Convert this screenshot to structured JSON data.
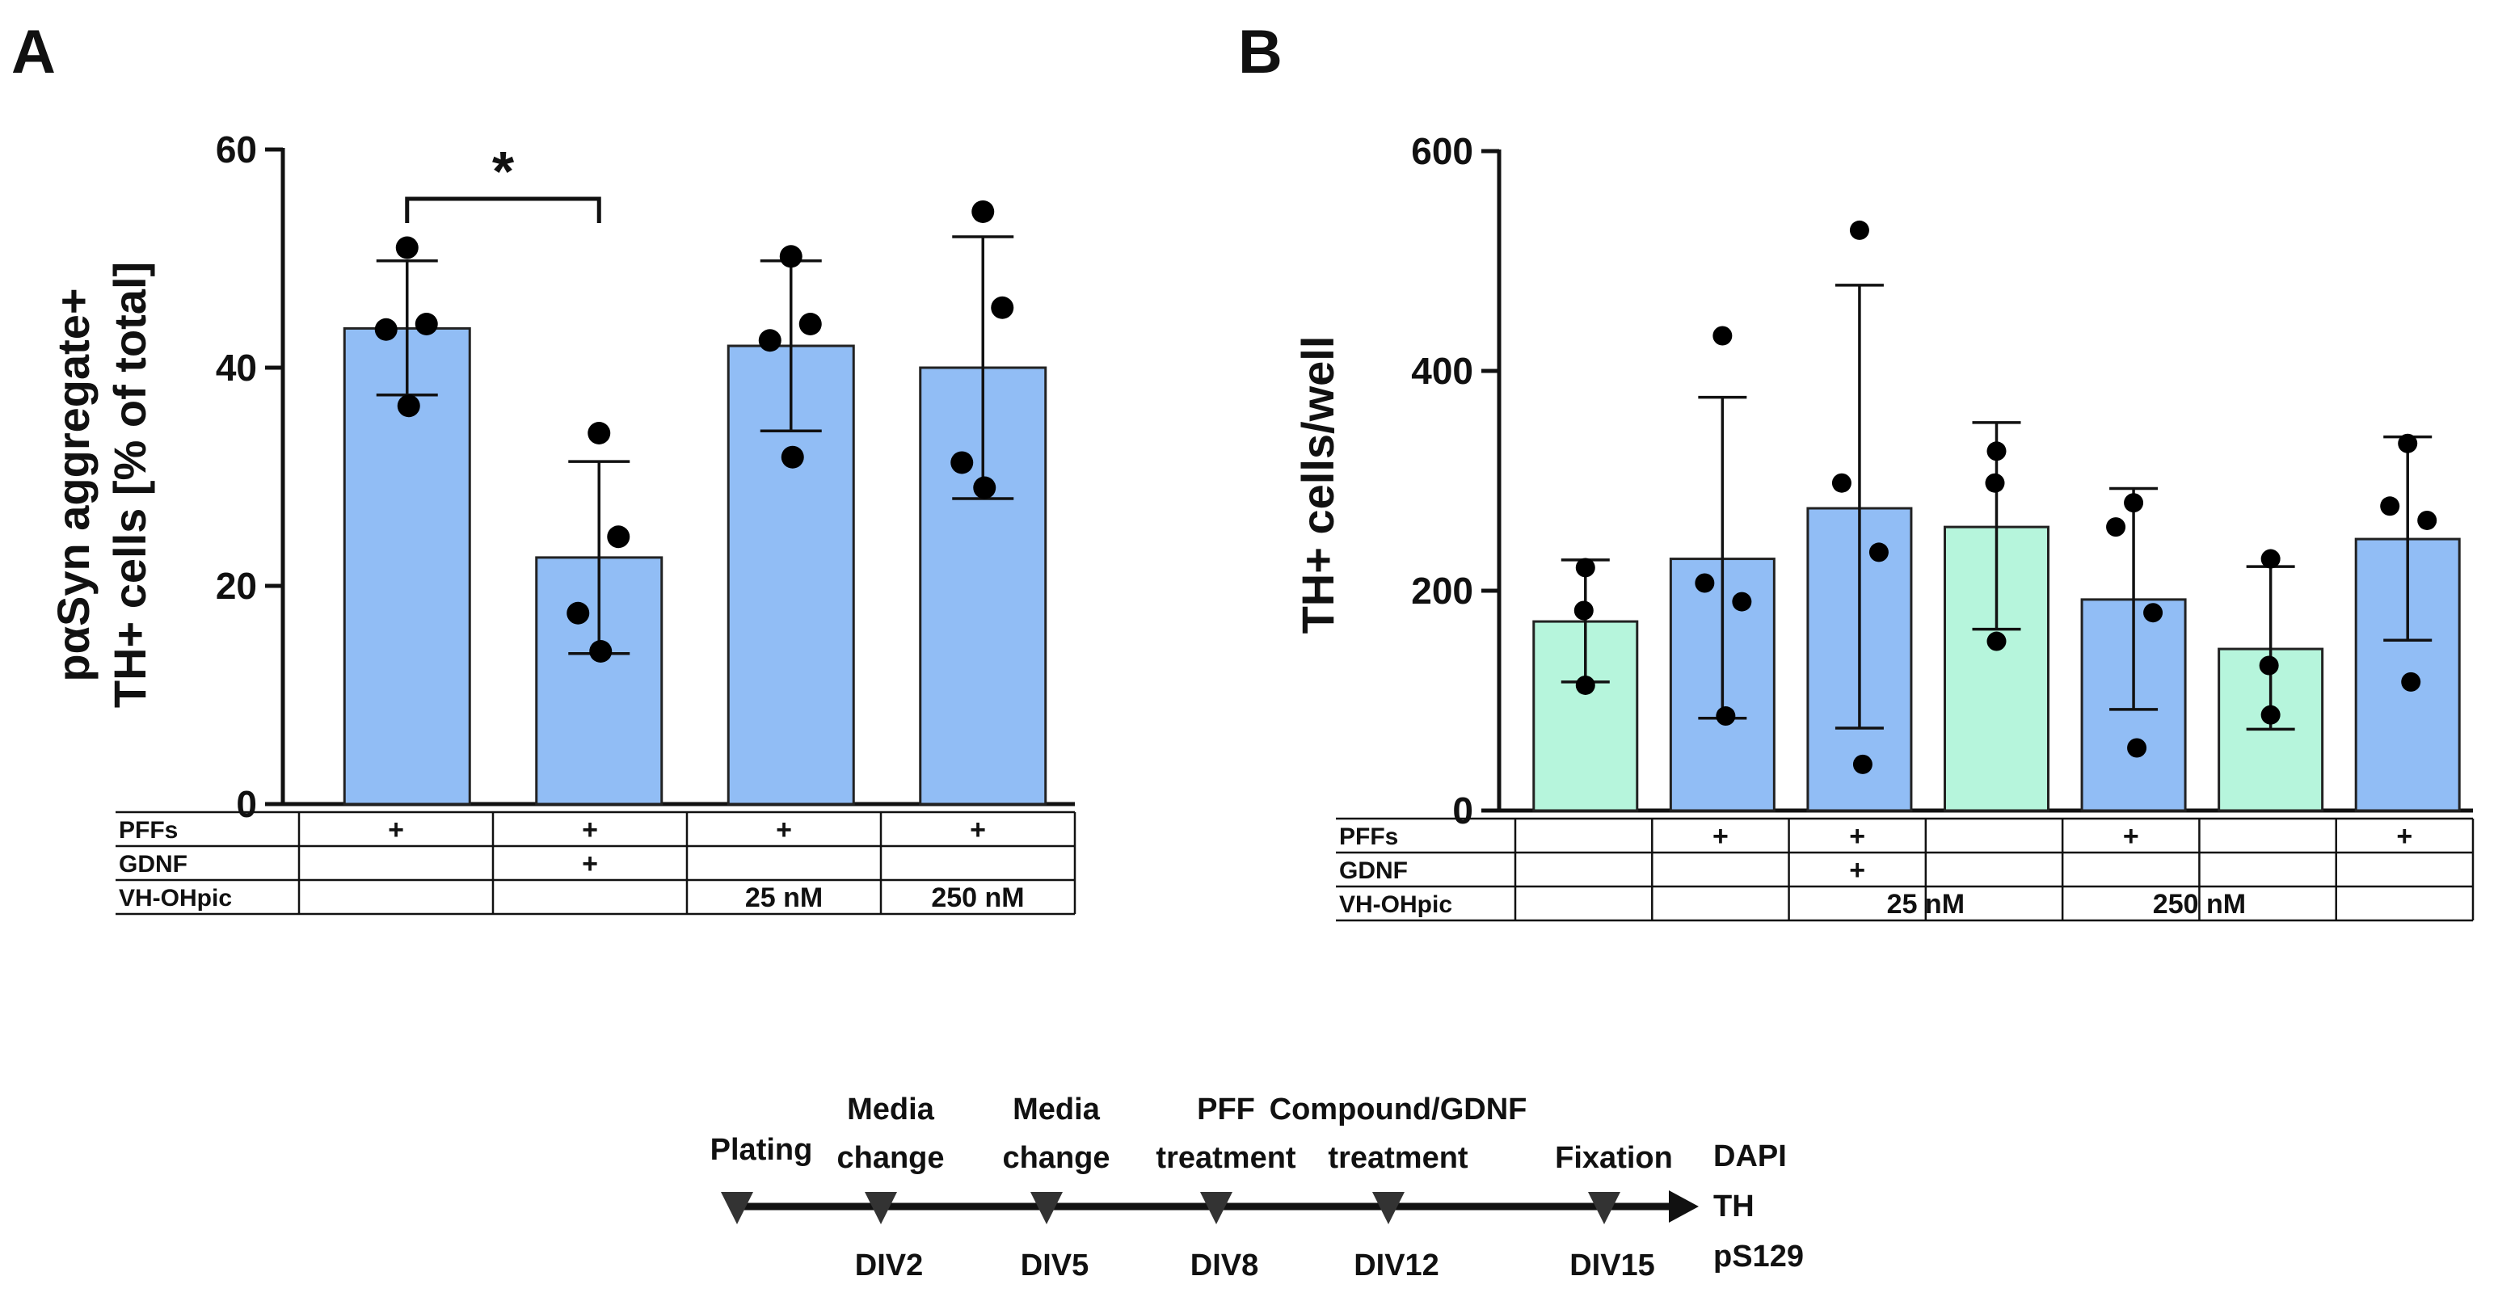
{
  "panels": {
    "a_letter": "A",
    "b_letter": "B"
  },
  "chart_data": [
    {
      "type": "bar",
      "panel": "A",
      "ylabel_line1": "pαSyn aggregate+",
      "ylabel_line2": "TH+ cells [% of total]",
      "ylim": [
        0,
        60
      ],
      "yticks": [
        "0",
        "20",
        "40",
        "60"
      ],
      "ytick_values": [
        0,
        20,
        40,
        60
      ],
      "bars": [
        {
          "mean": 43.6,
          "sd_low": 37.5,
          "sd_high": 49.8,
          "color": "#91bdf5",
          "points": [
            51.0,
            44.0,
            43.5,
            36.5
          ]
        },
        {
          "mean": 22.6,
          "sd_low": 13.8,
          "sd_high": 31.4,
          "color": "#91bdf5",
          "points": [
            34.0,
            24.5,
            17.5,
            14.0
          ]
        },
        {
          "mean": 42.0,
          "sd_low": 34.2,
          "sd_high": 49.8,
          "color": "#91bdf5",
          "points": [
            50.2,
            44.0,
            42.5,
            31.8
          ]
        },
        {
          "mean": 40.0,
          "sd_low": 28.0,
          "sd_high": 52.0,
          "color": "#91bdf5",
          "points": [
            54.3,
            45.5,
            31.3,
            29.0
          ]
        }
      ],
      "significance": {
        "from": 0,
        "to": 1,
        "label": "*"
      },
      "condition_rows": [
        {
          "label": "PFFs",
          "cells": [
            "+",
            "+",
            "+",
            "+"
          ]
        },
        {
          "label": "GDNF",
          "cells": [
            "",
            "+",
            "",
            ""
          ]
        },
        {
          "label": "VH-OHpic",
          "cells": [
            "",
            "",
            "25 nM",
            "250 nM"
          ]
        }
      ]
    },
    {
      "type": "bar",
      "panel": "B",
      "ylabel": "TH+ cells/well",
      "ylim": [
        0,
        600
      ],
      "yticks": [
        "0",
        "200",
        "400",
        "600"
      ],
      "ytick_values": [
        0,
        200,
        400,
        600
      ],
      "bars": [
        {
          "mean": 172,
          "sd_low": 117,
          "sd_high": 228,
          "color": "#b6f5dc",
          "points": [
            221,
            182,
            114
          ]
        },
        {
          "mean": 229,
          "sd_low": 84,
          "sd_high": 376,
          "color": "#91bdf5",
          "points": [
            432,
            207,
            190,
            86
          ]
        },
        {
          "mean": 275,
          "sd_low": 75,
          "sd_high": 478,
          "color": "#91bdf5",
          "points": [
            528,
            298,
            235,
            42
          ]
        },
        {
          "mean": 258,
          "sd_low": 165,
          "sd_high": 353,
          "color": "#b6f5dc",
          "points": [
            327,
            298,
            154
          ]
        },
        {
          "mean": 192,
          "sd_low": 92,
          "sd_high": 293,
          "color": "#91bdf5",
          "points": [
            280,
            258,
            180,
            57
          ]
        },
        {
          "mean": 147,
          "sd_low": 74,
          "sd_high": 222,
          "color": "#b6f5dc",
          "points": [
            229,
            132,
            87
          ]
        },
        {
          "mean": 247,
          "sd_low": 155,
          "sd_high": 340,
          "color": "#91bdf5",
          "points": [
            334,
            277,
            264,
            117
          ]
        }
      ],
      "condition_rows": [
        {
          "label": "PFFs",
          "cells": [
            "",
            "+",
            "+",
            "",
            "+",
            "",
            "+"
          ]
        },
        {
          "label": "GDNF",
          "cells": [
            "",
            "",
            "+",
            "",
            "",
            "",
            ""
          ]
        },
        {
          "label": "VH-OHpic",
          "cells": [
            "",
            "",
            "",
            "25 nM",
            "",
            "250 nM",
            ""
          ]
        }
      ]
    }
  ],
  "timeline": {
    "events": [
      {
        "top1": "",
        "top2": "Plating",
        "bottom": ""
      },
      {
        "top1": "Media",
        "top2": "change",
        "bottom": "DIV2"
      },
      {
        "top1": "Media",
        "top2": "change",
        "bottom": "DIV5"
      },
      {
        "top1": "PFF",
        "top2": "treatment",
        "bottom": "DIV8"
      },
      {
        "top1": "Compound/GDNF",
        "top2": "treatment",
        "bottom": "DIV12"
      },
      {
        "top1": "",
        "top2": "Fixation",
        "bottom": "DIV15"
      }
    ],
    "stains": [
      "DAPI",
      "TH",
      "pS129"
    ]
  }
}
